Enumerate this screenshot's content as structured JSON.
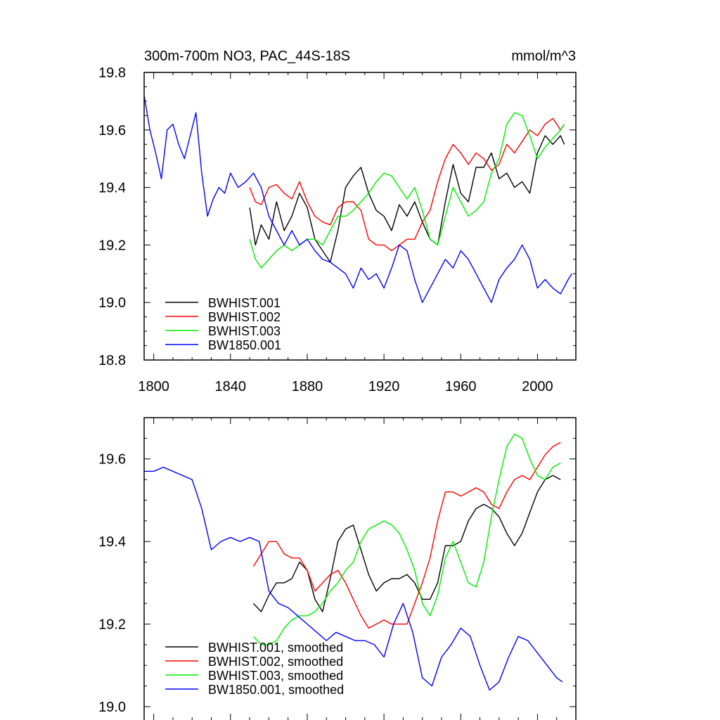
{
  "figure": {
    "title_left": "300m-700m NO3, PAC_44S-18S",
    "title_right": "mmol/m^3"
  },
  "colors": {
    "BWHIST.001": "#000000",
    "BWHIST.002": "#ff0000",
    "BWHIST.003": "#00ee00",
    "BW1850.001": "#0000ff"
  },
  "chart_data": [
    {
      "type": "line",
      "title": "300m-700m NO3, PAC_44S-18S",
      "units": "mmol/m^3",
      "xlim": [
        1795,
        2020
      ],
      "ylim": [
        18.8,
        19.8
      ],
      "x_ticks": [
        "1800",
        "1840",
        "1880",
        "1920",
        "1960",
        "2000"
      ],
      "y_ticks": [
        "18.8",
        "19.0",
        "19.2",
        "19.4",
        "19.6",
        "19.8"
      ],
      "legend": "bottom-left",
      "grid": false,
      "series": [
        {
          "name": "BWHIST.001",
          "key": "BWHIST.001",
          "x": [
            1850,
            1853,
            1856,
            1860,
            1864,
            1868,
            1872,
            1876,
            1880,
            1884,
            1888,
            1892,
            1896,
            1900,
            1904,
            1908,
            1912,
            1916,
            1920,
            1924,
            1928,
            1932,
            1936,
            1940,
            1944,
            1948,
            1952,
            1956,
            1960,
            1964,
            1968,
            1972,
            1976,
            1980,
            1984,
            1988,
            1992,
            1996,
            2000,
            2004,
            2008,
            2012,
            2014
          ],
          "y": [
            19.33,
            19.2,
            19.27,
            19.22,
            19.35,
            19.25,
            19.3,
            19.38,
            19.33,
            19.22,
            19.18,
            19.14,
            19.25,
            19.4,
            19.44,
            19.47,
            19.38,
            19.32,
            19.3,
            19.25,
            19.34,
            19.3,
            19.35,
            19.28,
            19.22,
            19.2,
            19.35,
            19.48,
            19.38,
            19.35,
            19.47,
            19.47,
            19.52,
            19.43,
            19.45,
            19.4,
            19.42,
            19.38,
            19.52,
            19.58,
            19.55,
            19.58,
            19.55
          ]
        },
        {
          "name": "BWHIST.002",
          "key": "BWHIST.002",
          "x": [
            1850,
            1853,
            1856,
            1860,
            1864,
            1868,
            1872,
            1876,
            1880,
            1884,
            1888,
            1892,
            1896,
            1900,
            1904,
            1908,
            1912,
            1916,
            1920,
            1924,
            1928,
            1932,
            1936,
            1940,
            1944,
            1948,
            1952,
            1956,
            1960,
            1964,
            1968,
            1972,
            1976,
            1980,
            1984,
            1988,
            1992,
            1996,
            2000,
            2004,
            2008,
            2012,
            2014
          ],
          "y": [
            19.4,
            19.35,
            19.34,
            19.4,
            19.41,
            19.38,
            19.36,
            19.42,
            19.35,
            19.3,
            19.28,
            19.27,
            19.33,
            19.35,
            19.35,
            19.32,
            19.22,
            19.2,
            19.2,
            19.18,
            19.2,
            19.22,
            19.22,
            19.28,
            19.32,
            19.42,
            19.5,
            19.55,
            19.52,
            19.48,
            19.52,
            19.5,
            19.46,
            19.48,
            19.55,
            19.52,
            19.56,
            19.6,
            19.58,
            19.62,
            19.64,
            19.6,
            19.62
          ]
        },
        {
          "name": "BWHIST.003",
          "key": "BWHIST.003",
          "x": [
            1850,
            1853,
            1856,
            1860,
            1864,
            1868,
            1872,
            1876,
            1880,
            1884,
            1888,
            1892,
            1896,
            1900,
            1904,
            1908,
            1912,
            1916,
            1920,
            1924,
            1928,
            1932,
            1936,
            1940,
            1944,
            1948,
            1952,
            1956,
            1960,
            1964,
            1968,
            1972,
            1976,
            1980,
            1984,
            1988,
            1992,
            1996,
            2000,
            2004,
            2008,
            2012,
            2014
          ],
          "y": [
            19.22,
            19.15,
            19.12,
            19.15,
            19.18,
            19.2,
            19.18,
            19.2,
            19.22,
            19.22,
            19.2,
            19.25,
            19.3,
            19.3,
            19.32,
            19.35,
            19.38,
            19.42,
            19.45,
            19.44,
            19.4,
            19.36,
            19.4,
            19.32,
            19.22,
            19.2,
            19.3,
            19.4,
            19.35,
            19.3,
            19.32,
            19.35,
            19.45,
            19.5,
            19.62,
            19.66,
            19.65,
            19.58,
            19.5,
            19.54,
            19.57,
            19.6,
            19.62
          ]
        },
        {
          "name": "BW1850.001",
          "key": "BW1850.001",
          "x": [
            1795,
            1798,
            1801,
            1804,
            1807,
            1810,
            1813,
            1816,
            1819,
            1822,
            1825,
            1828,
            1831,
            1834,
            1837,
            1840,
            1844,
            1848,
            1852,
            1856,
            1860,
            1864,
            1868,
            1872,
            1876,
            1880,
            1884,
            1888,
            1892,
            1896,
            1900,
            1904,
            1908,
            1912,
            1916,
            1920,
            1924,
            1928,
            1932,
            1936,
            1940,
            1944,
            1948,
            1952,
            1956,
            1960,
            1964,
            1968,
            1972,
            1976,
            1980,
            1984,
            1988,
            1992,
            1996,
            2000,
            2004,
            2008,
            2012,
            2016,
            2018
          ],
          "y": [
            19.72,
            19.6,
            19.52,
            19.43,
            19.6,
            19.62,
            19.55,
            19.5,
            19.58,
            19.66,
            19.45,
            19.3,
            19.36,
            19.4,
            19.38,
            19.45,
            19.4,
            19.42,
            19.45,
            19.4,
            19.3,
            19.25,
            19.2,
            19.25,
            19.2,
            19.22,
            19.18,
            19.15,
            19.14,
            19.12,
            19.1,
            19.05,
            19.12,
            19.08,
            19.1,
            19.05,
            19.12,
            19.2,
            19.18,
            19.08,
            19.0,
            19.05,
            19.1,
            19.15,
            19.12,
            19.18,
            19.15,
            19.1,
            19.05,
            19.0,
            19.08,
            19.12,
            19.15,
            19.2,
            19.15,
            19.05,
            19.08,
            19.05,
            19.03,
            19.08,
            19.1
          ]
        }
      ]
    },
    {
      "type": "line",
      "xlim": [
        1795,
        2020
      ],
      "ylim": [
        19.0,
        19.7
      ],
      "y_ticks": [
        "19.0",
        "19.2",
        "19.4",
        "19.6"
      ],
      "legend": "bottom-left",
      "grid": false,
      "series": [
        {
          "name": "BWHIST.001, smoothed",
          "key": "BWHIST.001",
          "x": [
            1852,
            1856,
            1860,
            1864,
            1868,
            1872,
            1876,
            1880,
            1884,
            1888,
            1892,
            1896,
            1900,
            1904,
            1908,
            1912,
            1916,
            1920,
            1924,
            1928,
            1932,
            1936,
            1940,
            1944,
            1948,
            1952,
            1956,
            1960,
            1964,
            1968,
            1972,
            1976,
            1980,
            1984,
            1988,
            1992,
            1996,
            2000,
            2004,
            2008,
            2012
          ],
          "y": [
            19.25,
            19.23,
            19.27,
            19.3,
            19.3,
            19.31,
            19.35,
            19.33,
            19.26,
            19.23,
            19.31,
            19.4,
            19.43,
            19.44,
            19.38,
            19.32,
            19.28,
            19.3,
            19.31,
            19.31,
            19.32,
            19.3,
            19.26,
            19.26,
            19.3,
            19.39,
            19.39,
            19.4,
            19.45,
            19.48,
            19.49,
            19.48,
            19.46,
            19.42,
            19.39,
            19.42,
            19.47,
            19.52,
            19.55,
            19.56,
            19.55
          ]
        },
        {
          "name": "BWHIST.002, smoothed",
          "key": "BWHIST.002",
          "x": [
            1852,
            1856,
            1860,
            1864,
            1868,
            1872,
            1876,
            1880,
            1884,
            1888,
            1892,
            1896,
            1900,
            1904,
            1908,
            1912,
            1916,
            1920,
            1924,
            1928,
            1932,
            1936,
            1940,
            1944,
            1948,
            1952,
            1956,
            1960,
            1964,
            1968,
            1972,
            1976,
            1980,
            1984,
            1988,
            1992,
            1996,
            2000,
            2004,
            2008,
            2012
          ],
          "y": [
            19.34,
            19.37,
            19.4,
            19.4,
            19.37,
            19.36,
            19.36,
            19.33,
            19.28,
            19.3,
            19.32,
            19.33,
            19.3,
            19.26,
            19.22,
            19.19,
            19.2,
            19.21,
            19.2,
            19.2,
            19.2,
            19.25,
            19.3,
            19.36,
            19.45,
            19.52,
            19.52,
            19.51,
            19.52,
            19.53,
            19.52,
            19.49,
            19.48,
            19.52,
            19.55,
            19.56,
            19.55,
            19.58,
            19.61,
            19.63,
            19.64
          ]
        },
        {
          "name": "BWHIST.003, smoothed",
          "key": "BWHIST.003",
          "x": [
            1852,
            1856,
            1860,
            1864,
            1868,
            1872,
            1876,
            1880,
            1884,
            1888,
            1892,
            1896,
            1900,
            1904,
            1908,
            1912,
            1916,
            1920,
            1924,
            1928,
            1932,
            1936,
            1940,
            1944,
            1948,
            1952,
            1956,
            1960,
            1964,
            1968,
            1972,
            1976,
            1980,
            1984,
            1988,
            1992,
            1996,
            2000,
            2004,
            2008,
            2012
          ],
          "y": [
            19.17,
            19.15,
            19.15,
            19.16,
            19.19,
            19.21,
            19.22,
            19.22,
            19.23,
            19.25,
            19.28,
            19.3,
            19.33,
            19.35,
            19.4,
            19.43,
            19.44,
            19.45,
            19.44,
            19.42,
            19.38,
            19.33,
            19.25,
            19.22,
            19.27,
            19.36,
            19.4,
            19.35,
            19.3,
            19.29,
            19.35,
            19.46,
            19.55,
            19.63,
            19.66,
            19.65,
            19.6,
            19.56,
            19.55,
            19.58,
            19.59
          ]
        },
        {
          "name": "BW1850.001, smoothed",
          "key": "BW1850.001",
          "x": [
            1795,
            1800,
            1805,
            1810,
            1815,
            1820,
            1825,
            1830,
            1835,
            1840,
            1845,
            1850,
            1855,
            1860,
            1865,
            1870,
            1875,
            1880,
            1885,
            1890,
            1895,
            1900,
            1905,
            1910,
            1915,
            1920,
            1925,
            1930,
            1935,
            1940,
            1945,
            1950,
            1955,
            1960,
            1965,
            1970,
            1975,
            1980,
            1985,
            1990,
            1995,
            2000,
            2005,
            2010,
            2013
          ],
          "y": [
            19.57,
            19.57,
            19.58,
            19.57,
            19.56,
            19.55,
            19.48,
            19.38,
            19.4,
            19.41,
            19.4,
            19.41,
            19.4,
            19.28,
            19.25,
            19.24,
            19.22,
            19.2,
            19.18,
            19.16,
            19.18,
            19.17,
            19.16,
            19.16,
            19.15,
            19.12,
            19.2,
            19.25,
            19.18,
            19.07,
            19.05,
            19.12,
            19.15,
            19.19,
            19.17,
            19.1,
            19.04,
            19.06,
            19.12,
            19.17,
            19.16,
            19.13,
            19.1,
            19.07,
            19.06
          ]
        }
      ]
    }
  ]
}
